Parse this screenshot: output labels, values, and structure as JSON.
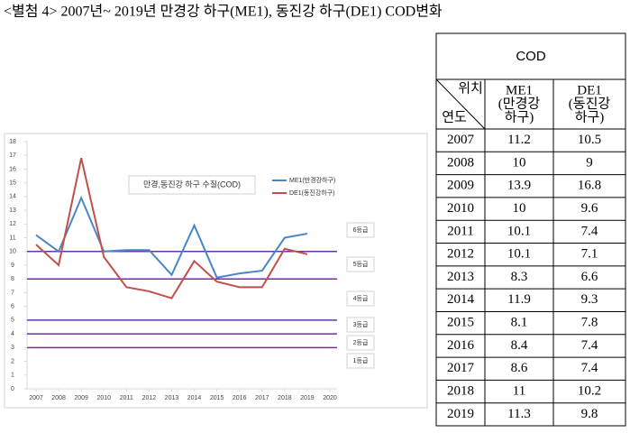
{
  "title": "<별첨 4> 2007년~ 2019년 만경강 하구(ME1), 동진강 하구(DE1) COD변화",
  "chart_data": {
    "type": "line",
    "title": "만경,동진강 하구 수질(COD)",
    "x": [
      2007,
      2008,
      2009,
      2010,
      2011,
      2012,
      2013,
      2014,
      2015,
      2016,
      2017,
      2018,
      2019
    ],
    "series": [
      {
        "name": "ME1(만경강하구)",
        "color": "#4a86c5",
        "values": [
          11.2,
          10,
          13.9,
          10,
          10.1,
          10.1,
          8.3,
          11.9,
          8.1,
          8.4,
          8.6,
          11,
          11.3
        ]
      },
      {
        "name": "DE1(동진강하구)",
        "color": "#c0504d",
        "values": [
          10.5,
          9,
          16.8,
          9.6,
          7.4,
          7.1,
          6.6,
          9.3,
          7.8,
          7.4,
          7.4,
          10.2,
          9.8
        ]
      }
    ],
    "xlim": [
      2007,
      2020
    ],
    "xticks": [
      2007,
      2008,
      2009,
      2010,
      2011,
      2012,
      2013,
      2014,
      2015,
      2016,
      2017,
      2018,
      2019,
      2020
    ],
    "ylim": [
      0,
      18
    ],
    "yticks": [
      0,
      1,
      2,
      3,
      4,
      5,
      6,
      7,
      8,
      9,
      10,
      11,
      12,
      13,
      14,
      15,
      16,
      17,
      18
    ],
    "thresholds": [
      10,
      8,
      5,
      4,
      3
    ],
    "threshold_color": "#7030a0",
    "grades": [
      "6등급",
      "5등급",
      "4등급",
      "3등급",
      "2등급",
      "1등급"
    ],
    "legend": "upper right"
  },
  "table": {
    "title": "COD",
    "corner_top": "위치",
    "corner_bottom": "연도",
    "columns": [
      [
        "ME1",
        "(만경강",
        "하구)"
      ],
      [
        "DE1",
        "(동진강",
        "하구)"
      ]
    ]
  }
}
